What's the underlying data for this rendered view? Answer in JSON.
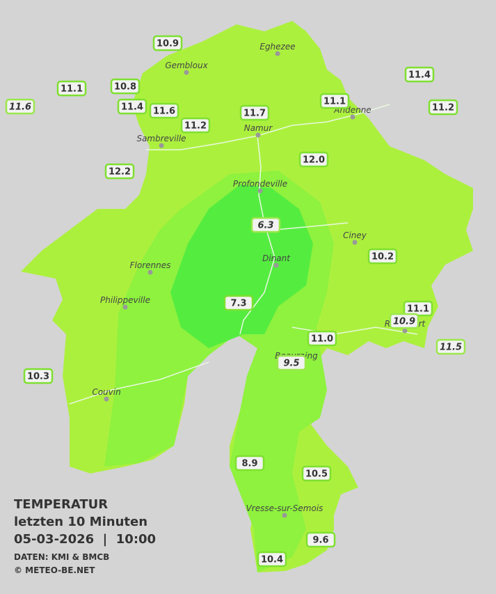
{
  "title": {
    "line1": "TEMPERATUR",
    "line2": "letzten 10 Minuten",
    "line3": "05-03-2026  |  10:00",
    "source": "DATEN: KMI & BMCB",
    "copyright": "© METEO-BE.NET"
  },
  "cities": [
    "Eghezee",
    "Gembloux",
    "Andenne",
    "Namur",
    "Sambreville",
    "Profondeville",
    "Ciney",
    "Dinant",
    "Florennes",
    "Philippeville",
    "Rochefort",
    "Beauraing",
    "Couvin",
    "Vresse-sur-Semois"
  ],
  "stations": [
    {
      "label": "10.9",
      "italic": false
    },
    {
      "label": "11.1",
      "italic": false
    },
    {
      "label": "11.6",
      "italic": true
    },
    {
      "label": "10.8",
      "italic": false
    },
    {
      "label": "11.4",
      "italic": false
    },
    {
      "label": "11.6",
      "italic": false
    },
    {
      "label": "11.2",
      "italic": false
    },
    {
      "label": "11.7",
      "italic": false
    },
    {
      "label": "11.1",
      "italic": false
    },
    {
      "label": "11.4",
      "italic": false
    },
    {
      "label": "11.2",
      "italic": false
    },
    {
      "label": "12.0",
      "italic": false
    },
    {
      "label": "12.2",
      "italic": false
    },
    {
      "label": "6.3",
      "italic": true
    },
    {
      "label": "10.2",
      "italic": false
    },
    {
      "label": "7.3",
      "italic": false
    },
    {
      "label": "11.1",
      "italic": false
    },
    {
      "label": "10.9",
      "italic": true
    },
    {
      "label": "11.0",
      "italic": false
    },
    {
      "label": "11.5",
      "italic": true
    },
    {
      "label": "9.5",
      "italic": true
    },
    {
      "label": "10.3",
      "italic": false
    },
    {
      "label": "8.9",
      "italic": false
    },
    {
      "label": "10.5",
      "italic": false
    },
    {
      "label": "9.6",
      "italic": false
    },
    {
      "label": "10.4",
      "italic": false
    }
  ]
}
